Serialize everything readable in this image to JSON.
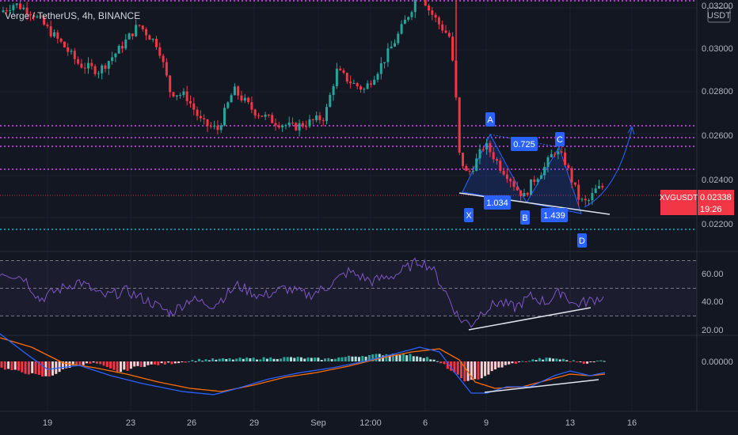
{
  "header": {
    "symbol_text": "Verge / TetherUS, 4h, BINANCE",
    "currency_label": "USDT"
  },
  "price_axis": {
    "top_partial": "0.03200",
    "ticks": [
      "0.03000",
      "0.02800",
      "0.02600",
      "0.02400",
      "0.02200"
    ]
  },
  "price_tag": {
    "symbol": "XVGUSDT",
    "price": "0.02338",
    "countdown": "19:26",
    "color": "#f23645"
  },
  "pattern": {
    "points": [
      "X",
      "A",
      "B",
      "C",
      "D"
    ],
    "ratios": {
      "xa_b": "1.034",
      "ab_c": "0.725",
      "bc_d": "1.439"
    }
  },
  "rsi_axis": {
    "ticks": [
      "60.00",
      "40.00",
      "20.00"
    ]
  },
  "macd_axis": {
    "ticks": [
      "0.00000"
    ]
  },
  "time_axis": {
    "ticks": [
      "19",
      "23",
      "26",
      "29",
      "Sep",
      "12:00",
      "6",
      "9",
      "13",
      "16"
    ]
  },
  "colors": {
    "background": "#131722",
    "up": "#26a69a",
    "down": "#f23645",
    "rsi_line": "#7e57c2",
    "macd_line": "#2962ff",
    "signal_line": "#ff6d00",
    "resistance_lines": "#e040fb",
    "support_line": "#00bcd4",
    "pattern_label": "#2962ff"
  }
}
